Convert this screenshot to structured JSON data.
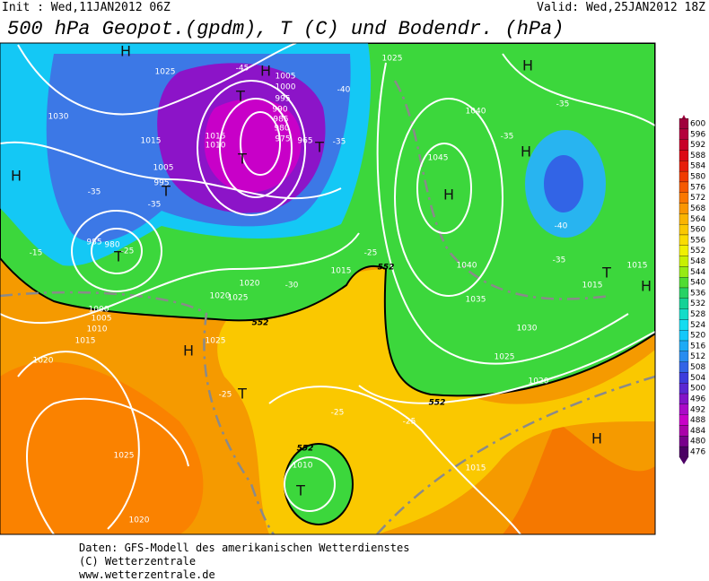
{
  "header": {
    "init": "Init : Wed,11JAN2012 06Z",
    "valid": "Valid: Wed,25JAN2012 18Z"
  },
  "title": "500 hPa Geopot.(gpdm), T (C) und Bodendr. (hPa)",
  "legend": {
    "values": [
      600,
      596,
      592,
      588,
      584,
      580,
      576,
      572,
      568,
      564,
      560,
      556,
      552,
      548,
      544,
      540,
      536,
      532,
      528,
      524,
      520,
      516,
      512,
      508,
      504,
      500,
      496,
      492,
      488,
      484,
      480,
      476
    ],
    "colors": [
      "#a0003c",
      "#b4003c",
      "#c80028",
      "#dc0a14",
      "#e61e0a",
      "#f03c00",
      "#f55a00",
      "#fa7800",
      "#fa9600",
      "#fab400",
      "#fac800",
      "#fadc00",
      "#f0f000",
      "#c8f000",
      "#96eb14",
      "#50dc32",
      "#28d264",
      "#14d296",
      "#14dcc8",
      "#14dcf0",
      "#14c8fa",
      "#1eaaf5",
      "#288cf0",
      "#3264e6",
      "#3c3cdc",
      "#5a28d2",
      "#8214c8",
      "#aa0ac8",
      "#c800c8",
      "#aa00aa",
      "#78008c",
      "#4b0064"
    ]
  },
  "map": {
    "labels": [
      "H",
      "H",
      "T",
      "T",
      "T",
      "T",
      "H",
      "H",
      "H",
      "T",
      "H",
      "T",
      "T",
      "H",
      "H",
      "T",
      "H",
      "1025",
      "1030",
      "1015",
      "1005",
      "995",
      "985",
      "980",
      "1000",
      "1005",
      "1010",
      "1015",
      "1020",
      "1025",
      "1020",
      "1025",
      "1020",
      "1005",
      "1000",
      "995",
      "990",
      "985",
      "980",
      "975",
      "965",
      "1010",
      "1015",
      "1020",
      "1025",
      "1040",
      "1045",
      "1040",
      "1035",
      "1030",
      "1025",
      "1020",
      "1015",
      "1015",
      "1015",
      "1010",
      "1015",
      "1025",
      "-35",
      "-35",
      "-15",
      "-25",
      "-30",
      "-45",
      "-40",
      "-35",
      "-25",
      "-25",
      "-25",
      "-35",
      "-40",
      "-35",
      "-25",
      "-35",
      "552",
      "552",
      "552",
      "552"
    ]
  },
  "footer": [
    "Daten: GFS-Modell des amerikanischen Wetterdienstes",
    "(C) Wetterzentrale",
    "www.wetterzentrale.de"
  ]
}
